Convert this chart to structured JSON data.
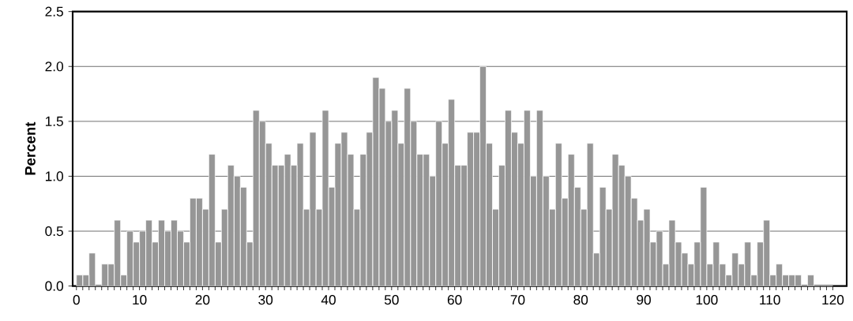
{
  "chart_data": {
    "type": "histogram",
    "ylabel": "Percent",
    "color": "#969696",
    "grid": "y",
    "bins": [
      0,
      1,
      2,
      3,
      4,
      5,
      6,
      7,
      8,
      9,
      10,
      11,
      12,
      13,
      14,
      15,
      16,
      17,
      18,
      19,
      20,
      21,
      22,
      23,
      24,
      25,
      26,
      27,
      28,
      29,
      30,
      31,
      32,
      33,
      34,
      35,
      36,
      37,
      38,
      39,
      40,
      41,
      42,
      43,
      44,
      45,
      46,
      47,
      48,
      49,
      50,
      51,
      52,
      53,
      54,
      55,
      56,
      57,
      58,
      59,
      60,
      61,
      62,
      63,
      64,
      65,
      66,
      67,
      68,
      69,
      70,
      71,
      72,
      73,
      74,
      75,
      76,
      77,
      78,
      79,
      80,
      81,
      82,
      83,
      84,
      85,
      86,
      87,
      88,
      89,
      90,
      91,
      92,
      93,
      94,
      95,
      96,
      97,
      98,
      99,
      100,
      101,
      102,
      103,
      104,
      105,
      106,
      107,
      108,
      109,
      110,
      111,
      112,
      113,
      114,
      115,
      116,
      117,
      118,
      119,
      120
    ],
    "values": [
      0.1,
      0.1,
      0.3,
      0.0,
      0.2,
      0.2,
      0.6,
      0.1,
      0.5,
      0.4,
      0.5,
      0.6,
      0.4,
      0.6,
      0.5,
      0.6,
      0.5,
      0.4,
      0.8,
      0.8,
      0.7,
      1.2,
      0.4,
      0.7,
      1.1,
      1.0,
      0.9,
      0.4,
      1.6,
      1.5,
      1.3,
      1.1,
      1.1,
      1.2,
      1.1,
      1.3,
      0.7,
      1.4,
      0.7,
      1.6,
      0.9,
      1.3,
      1.4,
      1.2,
      0.7,
      1.2,
      1.4,
      1.9,
      1.8,
      1.5,
      1.6,
      1.3,
      1.8,
      1.5,
      1.2,
      1.2,
      1.0,
      1.5,
      1.3,
      1.7,
      1.1,
      1.1,
      1.4,
      1.4,
      2.0,
      1.3,
      0.7,
      1.1,
      1.6,
      1.4,
      1.3,
      1.6,
      1.0,
      1.6,
      1.0,
      0.7,
      1.3,
      0.8,
      1.2,
      0.9,
      0.7,
      1.3,
      0.3,
      0.9,
      0.7,
      1.2,
      1.1,
      1.0,
      0.8,
      0.6,
      0.7,
      0.4,
      0.5,
      0.2,
      0.6,
      0.4,
      0.3,
      0.2,
      0.4,
      0.9,
      0.2,
      0.4,
      0.2,
      0.1,
      0.3,
      0.2,
      0.4,
      0.1,
      0.4,
      0.6,
      0.1,
      0.2,
      0.1,
      0.1,
      0.1,
      0.0,
      0.1,
      0.0,
      0.0,
      0.0
    ],
    "xlim": [
      -0.6,
      122.2
    ],
    "ylim": [
      0,
      2.5
    ],
    "xticks": [
      0,
      10,
      20,
      30,
      40,
      50,
      60,
      70,
      80,
      90,
      100,
      110,
      120
    ],
    "yticks": [
      {
        "value": 0,
        "label": "0.0"
      },
      {
        "value": 0.5,
        "label": "0.5"
      },
      {
        "value": 1.0,
        "label": "1.0"
      },
      {
        "value": 1.5,
        "label": "1.5"
      },
      {
        "value": 2.0,
        "label": "2.0"
      },
      {
        "value": 2.5,
        "label": "2.5"
      }
    ]
  }
}
